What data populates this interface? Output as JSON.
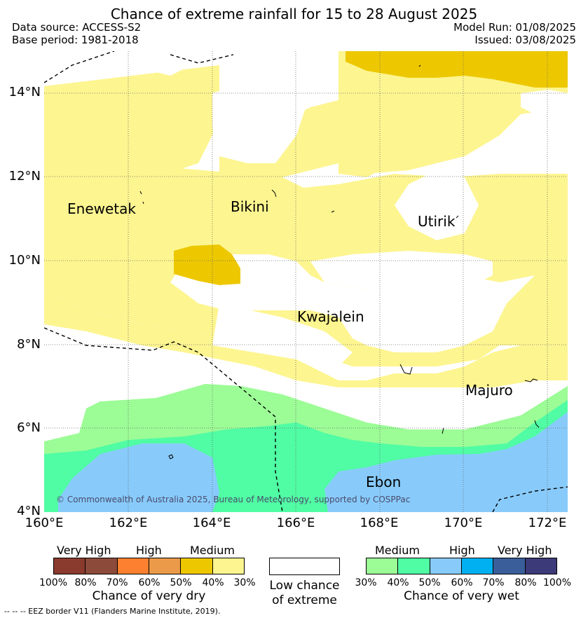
{
  "title": "Chance of extreme rainfall for 15 to 28 August 2025",
  "meta": {
    "data_source": "Data source: ACCESS-S2",
    "base_period": "Base period: 1981-2018",
    "model_run": "Model Run: 01/08/2025",
    "issued": "Issued: 03/08/2025"
  },
  "map": {
    "lat_ticks": [
      "14°N",
      "12°N",
      "10°N",
      "8°N",
      "6°N",
      "4°N"
    ],
    "lon_ticks": [
      "160°E",
      "162°E",
      "164°E",
      "166°E",
      "168°E",
      "170°E",
      "172°E"
    ],
    "places": {
      "enewetak": "Enewetak",
      "bikini": "Bikini",
      "utirik": "Utirik",
      "kwajalein": "Kwajalein",
      "majuro": "Majuro",
      "ebon": "Ebon"
    },
    "copyright": "© Commonwealth of Australia 2025, Bureau of Meteorology, supported by COSPPac",
    "colors": {
      "dry_medium_30_40": "#fdf590",
      "dry_medium_40_50": "#edc800",
      "wet_medium_30_40": "#9cfc96",
      "wet_medium_40_50": "#50fca4",
      "wet_high_50_60": "#88cbfb"
    }
  },
  "legend": {
    "dry": {
      "categories": [
        "Very High",
        "High",
        "Medium"
      ],
      "percents": [
        "100%",
        "80%",
        "70%",
        "60%",
        "50%",
        "40%",
        "30%"
      ],
      "colors": [
        "#8b3a2e",
        "#8c4a3a",
        "#fc8030",
        "#eb9a4a",
        "#edc800",
        "#fdf590"
      ],
      "title": "Chance of very dry"
    },
    "low": {
      "line1": "Low chance",
      "line2": "of extreme",
      "color": "#ffffff"
    },
    "wet": {
      "categories": [
        "Medium",
        "High",
        "Very High"
      ],
      "percents": [
        "30%",
        "40%",
        "50%",
        "60%",
        "70%",
        "80%",
        "100%"
      ],
      "colors": [
        "#9cfc96",
        "#50fca4",
        "#88cbfb",
        "#00b0f0",
        "#3a5e9a",
        "#3c3a78"
      ],
      "title": "Chance of very wet"
    }
  },
  "footer": "--  --  -- EEZ border V11 (Flanders Marine Institute, 2019)."
}
